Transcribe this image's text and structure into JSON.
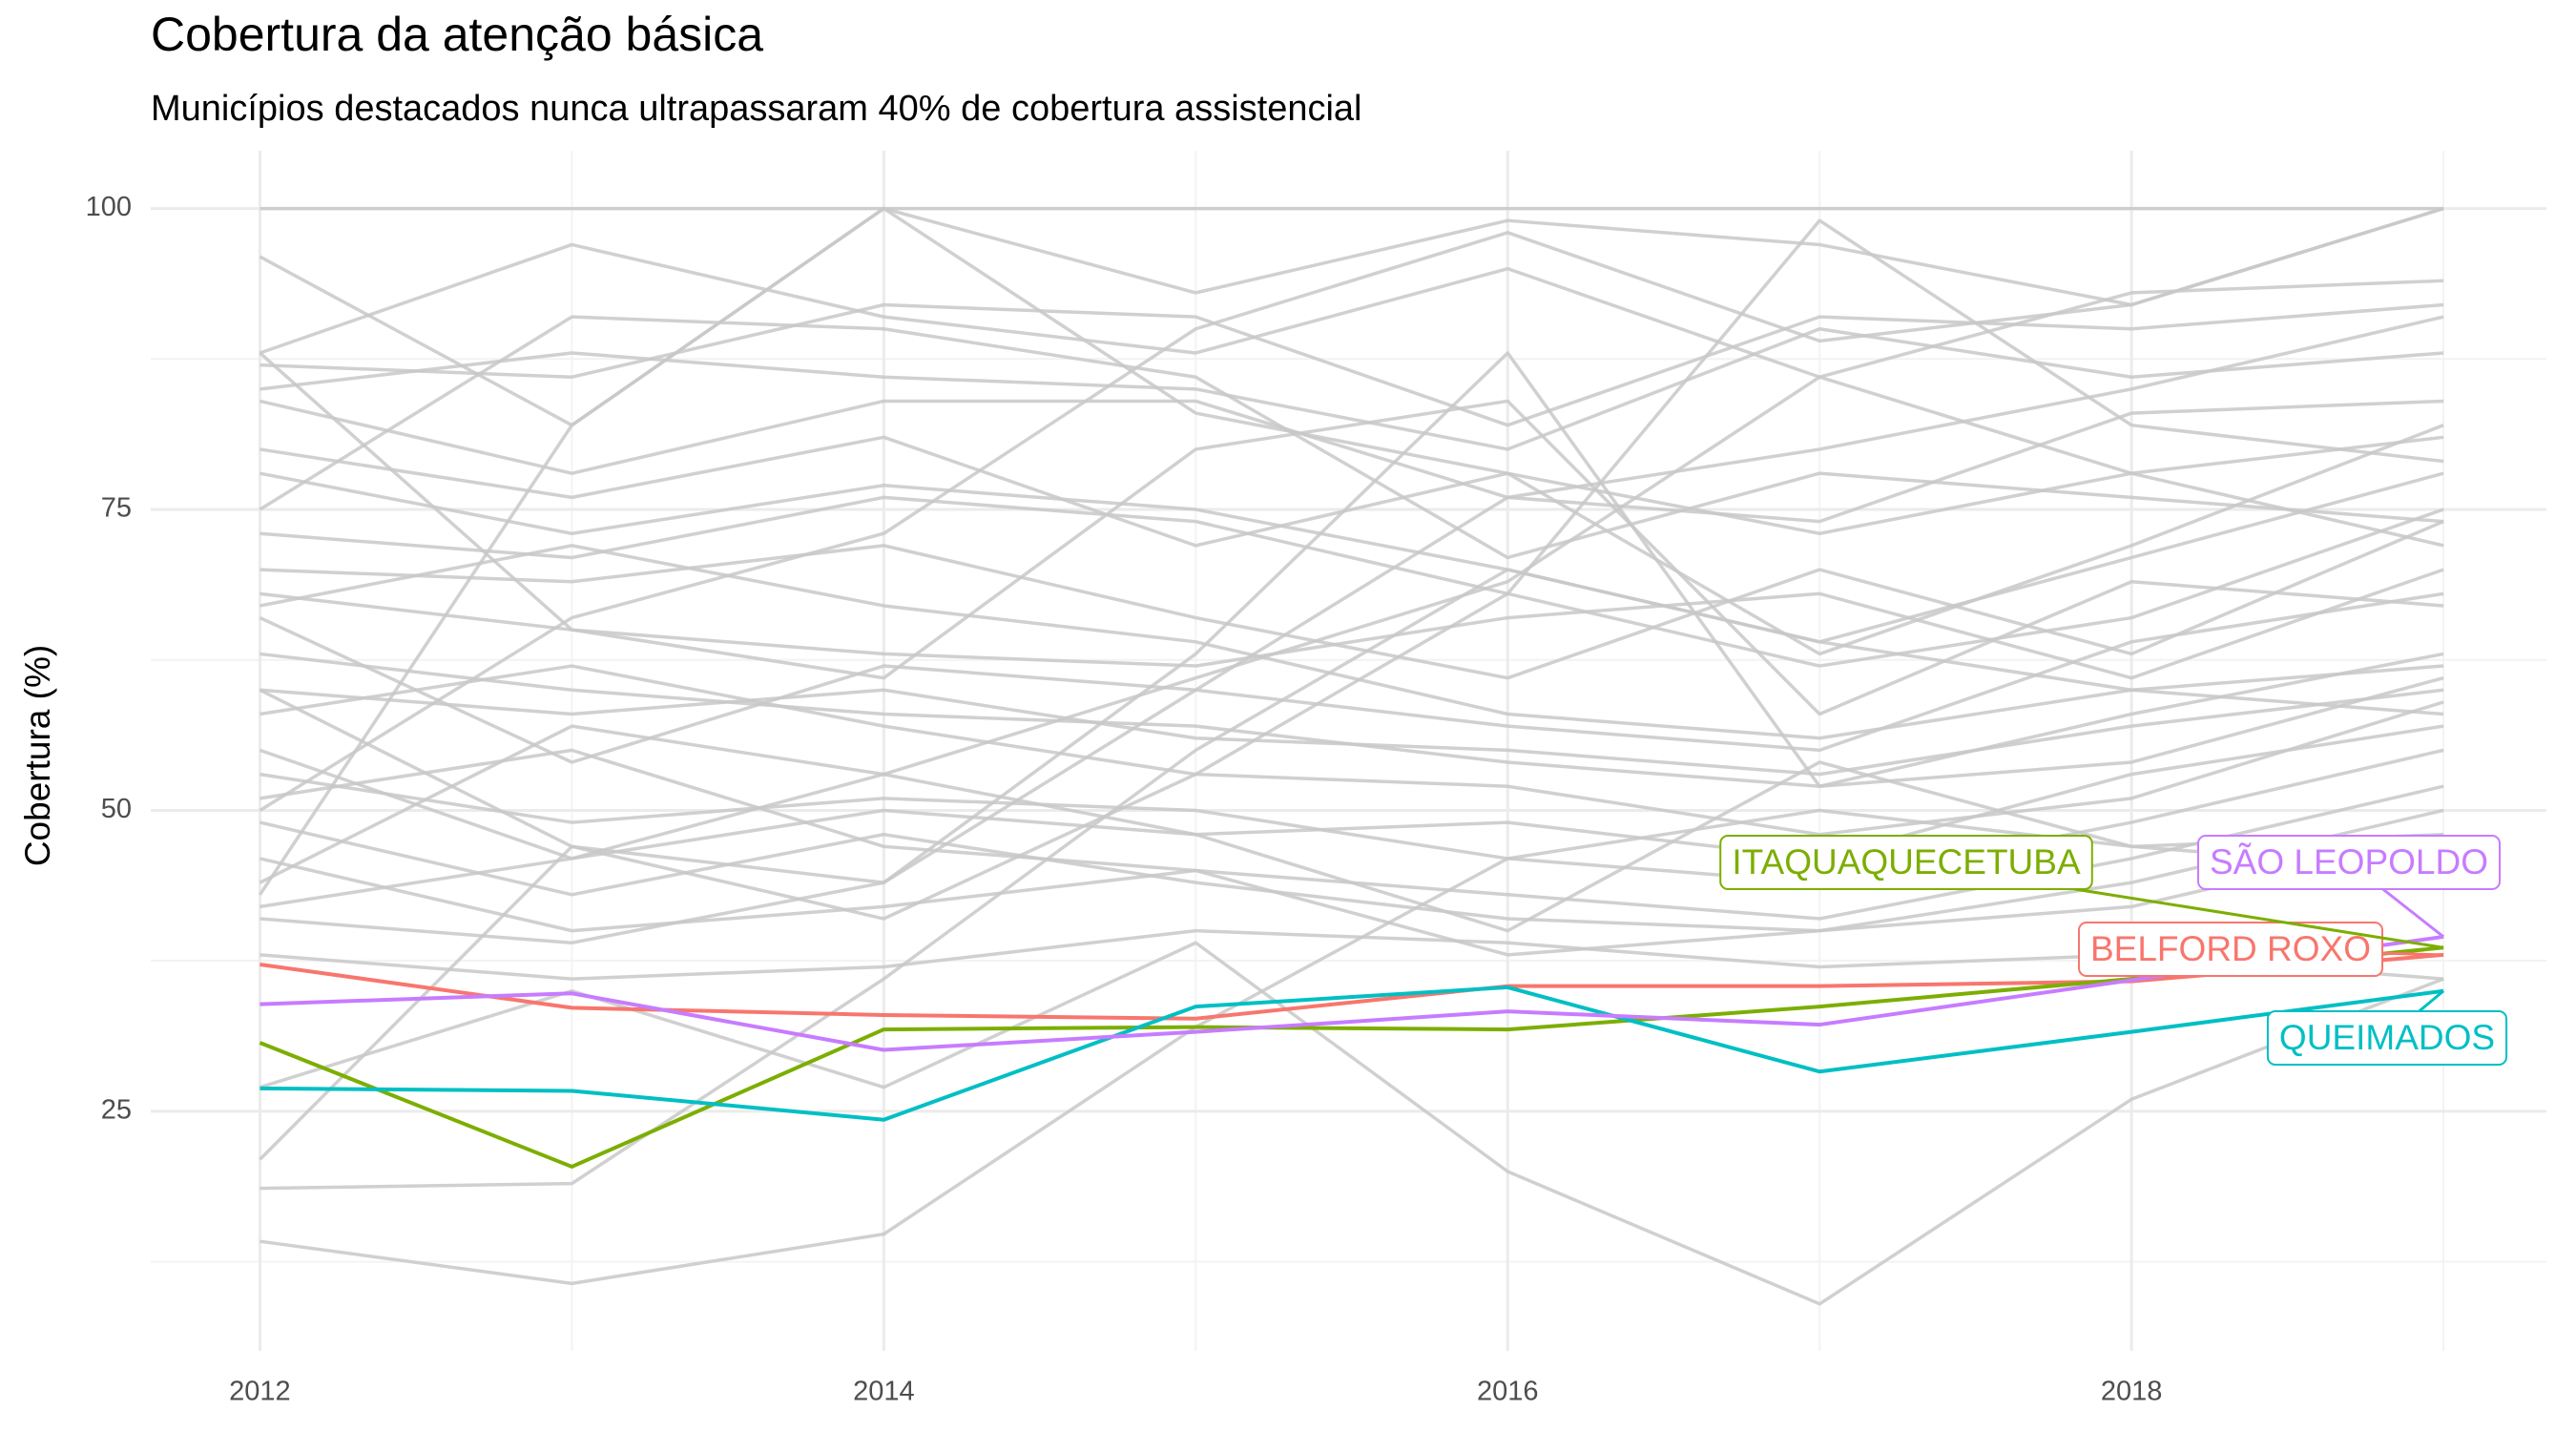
{
  "chart_data": {
    "type": "line",
    "title": "Cobertura da atenção básica",
    "subtitle": "Municípios destacados nunca ultrapassaram 40% de cobertura assistencial",
    "y_label": "Cobertura (%)",
    "x": [
      2012,
      2013,
      2014,
      2015,
      2016,
      2017,
      2018,
      2019
    ],
    "xlim": [
      2011.65,
      2019.33
    ],
    "xticks": [
      2012,
      2014,
      2016,
      2018
    ],
    "ylim": [
      5.1,
      104.8
    ],
    "yticks": [
      25,
      50,
      75,
      100
    ],
    "grid": true,
    "series": [
      {
        "color": "#c8c8c8",
        "values": [
          100,
          100,
          100,
          100,
          100,
          100,
          100,
          100
        ]
      },
      {
        "color": "#c8c8c8",
        "values": [
          96,
          82,
          100,
          93,
          99,
          97,
          92,
          100
        ]
      },
      {
        "color": "#c8c8c8",
        "values": [
          88,
          97,
          91,
          88,
          95,
          86,
          93,
          94
        ]
      },
      {
        "color": "#c8c8c8",
        "values": [
          87,
          86,
          92,
          91,
          82,
          91,
          90,
          92
        ]
      },
      {
        "color": "#c8c8c8",
        "values": [
          85,
          88,
          86,
          85,
          80,
          90,
          86,
          88
        ]
      },
      {
        "color": "#c8c8c8",
        "values": [
          84,
          78,
          84,
          84,
          76,
          74,
          83,
          84
        ]
      },
      {
        "color": "#c8c8c8",
        "values": [
          80,
          76,
          81,
          72,
          78,
          73,
          78,
          81
        ]
      },
      {
        "color": "#c8c8c8",
        "values": [
          78,
          73,
          77,
          75,
          70,
          64,
          71,
          78
        ]
      },
      {
        "color": "#c8c8c8",
        "values": [
          73,
          71,
          76,
          74,
          68,
          62,
          66,
          75
        ]
      },
      {
        "color": "#c8c8c8",
        "values": [
          70,
          69,
          72,
          66,
          61,
          70,
          63,
          74
        ]
      },
      {
        "color": "#c8c8c8",
        "values": [
          68,
          65,
          63,
          62,
          66,
          68,
          61,
          70
        ]
      },
      {
        "color": "#c8c8c8",
        "values": [
          66,
          54,
          62,
          60,
          57,
          55,
          64,
          68
        ]
      },
      {
        "color": "#c8c8c8",
        "values": [
          63,
          60,
          58,
          57,
          54,
          52,
          58,
          63
        ]
      },
      {
        "color": "#c8c8c8",
        "values": [
          60,
          58,
          60,
          56,
          55,
          53,
          57,
          60
        ]
      },
      {
        "color": "#c8c8c8",
        "values": [
          58,
          62,
          57,
          53,
          52,
          48,
          51,
          59
        ]
      },
      {
        "color": "#c8c8c8",
        "values": [
          55,
          46,
          50,
          48,
          49,
          46,
          53,
          57
        ]
      },
      {
        "color": "#c8c8c8",
        "values": [
          53,
          49,
          51,
          50,
          46,
          44,
          49,
          55
        ]
      },
      {
        "color": "#c8c8c8",
        "values": [
          51,
          55,
          47,
          45,
          43,
          41,
          46,
          52
        ]
      },
      {
        "color": "#c8c8c8",
        "values": [
          49,
          43,
          48,
          44,
          41,
          40,
          44,
          50
        ]
      },
      {
        "color": "#c8c8c8",
        "values": [
          46,
          40,
          42,
          45,
          38,
          40,
          42,
          48
        ]
      },
      {
        "color": "#c8c8c8",
        "values": [
          44,
          57,
          53,
          48,
          40,
          54,
          47,
          45
        ]
      },
      {
        "color": "#c8c8c8",
        "values": [
          42,
          46,
          53,
          61,
          69,
          86,
          78,
          72
        ]
      },
      {
        "color": "#c8c8c8",
        "values": [
          41,
          39,
          44,
          60,
          76,
          80,
          85,
          91
        ]
      },
      {
        "color": "#c8c8c8",
        "values": [
          38,
          36,
          37,
          40,
          39,
          37,
          38,
          36
        ]
      },
      {
        "color": "#c8c8c8",
        "values": [
          27,
          35,
          27,
          39,
          20,
          9,
          26,
          36
        ]
      },
      {
        "color": "#c8c8c8",
        "values": [
          21,
          47,
          44,
          63,
          88,
          52,
          54,
          61
        ]
      },
      {
        "color": "#c8c8c8",
        "values": [
          18.6,
          19,
          36,
          55,
          70,
          64,
          60,
          58
        ]
      },
      {
        "color": "#c8c8c8",
        "values": [
          14.2,
          10.7,
          14.8,
          32,
          46,
          50,
          47,
          48
        ]
      },
      {
        "color": "#c8c8c8",
        "values": [
          43,
          82,
          100,
          83,
          78,
          63,
          72,
          82
        ]
      },
      {
        "color": "#c8c8c8",
        "values": [
          88,
          65,
          61,
          80,
          84,
          58,
          69,
          67
        ]
      },
      {
        "color": "#c8c8c8",
        "values": [
          50,
          66,
          73,
          90,
          98,
          89,
          92,
          100
        ]
      },
      {
        "color": "#c8c8c8",
        "values": [
          67,
          72,
          67,
          64,
          58,
          56,
          60,
          62
        ]
      },
      {
        "color": "#c8c8c8",
        "values": [
          75,
          91,
          90,
          86,
          71,
          78,
          76,
          74
        ]
      },
      {
        "color": "#c8c8c8",
        "values": [
          60,
          47,
          41,
          53,
          68,
          99,
          82,
          79
        ]
      },
      {
        "name": "BELFORD ROXO",
        "color": "#F8766D",
        "values": [
          37.2,
          33.6,
          33.0,
          32.7,
          35.4,
          35.4,
          35.8,
          38.0
        ]
      },
      {
        "name": "ITAQUAQUECETUBA",
        "color": "#7CAE00",
        "values": [
          30.7,
          20.4,
          31.8,
          32.0,
          31.8,
          33.7,
          36.0,
          38.6
        ]
      },
      {
        "name": "QUEIMADOS",
        "color": "#00BFC4",
        "values": [
          26.9,
          26.7,
          24.3,
          33.7,
          35.3,
          28.3,
          31.6,
          35.0
        ]
      },
      {
        "name": "SÃO LEOPOLDO",
        "color": "#C77CFF",
        "values": [
          33.9,
          34.8,
          30.1,
          31.6,
          33.3,
          32.2,
          35.9,
          39.5
        ]
      }
    ]
  }
}
